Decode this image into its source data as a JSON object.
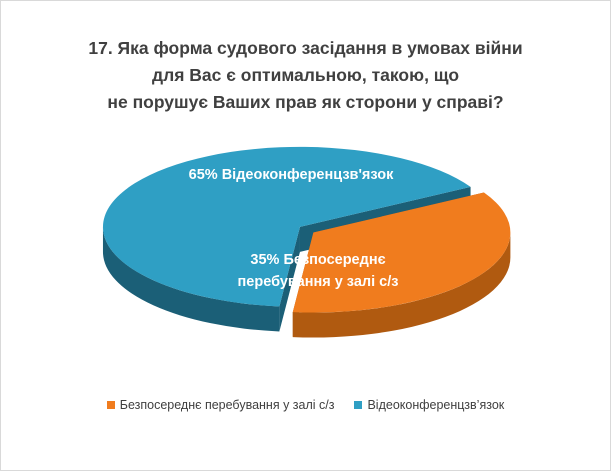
{
  "chart_data": {
    "type": "pie",
    "title_lines": [
      "17. Яка форма судового засідання в умовах війни",
      "для Вас є оптимальною,  такою, що",
      "не порушує Ваших прав як сторони у справі?"
    ],
    "three_d": true,
    "exploded": true,
    "legend_position": "bottom",
    "slices": [
      {
        "name": "Безпосереднє перебування у залі с/з",
        "value": 35,
        "label_lines": [
          "35%  Безпосереднє",
          "перебування у залі с/з"
        ],
        "color": "#f07c1e",
        "side_color": "#b05a10"
      },
      {
        "name": "Відеоконференцзв’язок",
        "value": 65,
        "label_lines": [
          "65%  Відеоконференцзв'язок"
        ],
        "color": "#2f9fc4",
        "side_color": "#1b5f77"
      }
    ]
  }
}
